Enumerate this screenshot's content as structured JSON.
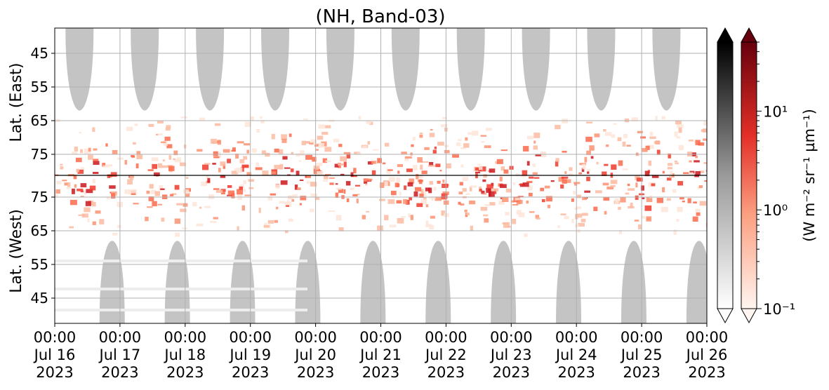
{
  "chart_data": {
    "type": "heatmap",
    "title": "(NH, Band-03)",
    "ylabel_top": "Lat. (East)",
    "ylabel_bottom": "Lat. (West)",
    "colorbar_label": "(W m⁻² sr⁻¹ µm⁻¹)",
    "colorbar_scale": "log",
    "colorbar_range": [
      0.1,
      50
    ],
    "colorbar_ticks": [
      "10⁻¹",
      "10⁰",
      "10¹"
    ],
    "colormaps": [
      "Greys",
      "Reds"
    ],
    "y_tick_labels_top": [
      "45",
      "55",
      "65",
      "75"
    ],
    "y_tick_labels_bottom": [
      "75",
      "65",
      "55",
      "45"
    ],
    "x_ticks": [
      {
        "time": "00:00",
        "date": "Jul 16",
        "year": "2023"
      },
      {
        "time": "00:00",
        "date": "Jul 17",
        "year": "2023"
      },
      {
        "time": "00:00",
        "date": "Jul 18",
        "year": "2023"
      },
      {
        "time": "00:00",
        "date": "Jul 19",
        "year": "2023"
      },
      {
        "time": "00:00",
        "date": "Jul 20",
        "year": "2023"
      },
      {
        "time": "00:00",
        "date": "Jul 21",
        "year": "2023"
      },
      {
        "time": "00:00",
        "date": "Jul 22",
        "year": "2023"
      },
      {
        "time": "00:00",
        "date": "Jul 23",
        "year": "2023"
      },
      {
        "time": "00:00",
        "date": "Jul 24",
        "year": "2023"
      },
      {
        "time": "00:00",
        "date": "Jul 25",
        "year": "2023"
      },
      {
        "time": "00:00",
        "date": "Jul 26",
        "year": "2023"
      }
    ],
    "grid": true,
    "east_grey_lobe_centers_day": [
      0.38,
      1.38,
      2.38,
      3.38,
      4.38,
      5.38,
      6.38,
      7.38,
      8.38,
      9.38
    ],
    "west_grey_lobe_centers_day": [
      0.88,
      1.88,
      2.88,
      3.88,
      4.88,
      5.88,
      6.88,
      7.88,
      8.88,
      9.88
    ],
    "red_hotspot_centers_day": [
      0.5,
      1.6,
      2.5,
      3.6,
      4.5,
      5.6,
      6.5,
      7.4,
      8.2,
      9.1,
      9.8
    ]
  }
}
